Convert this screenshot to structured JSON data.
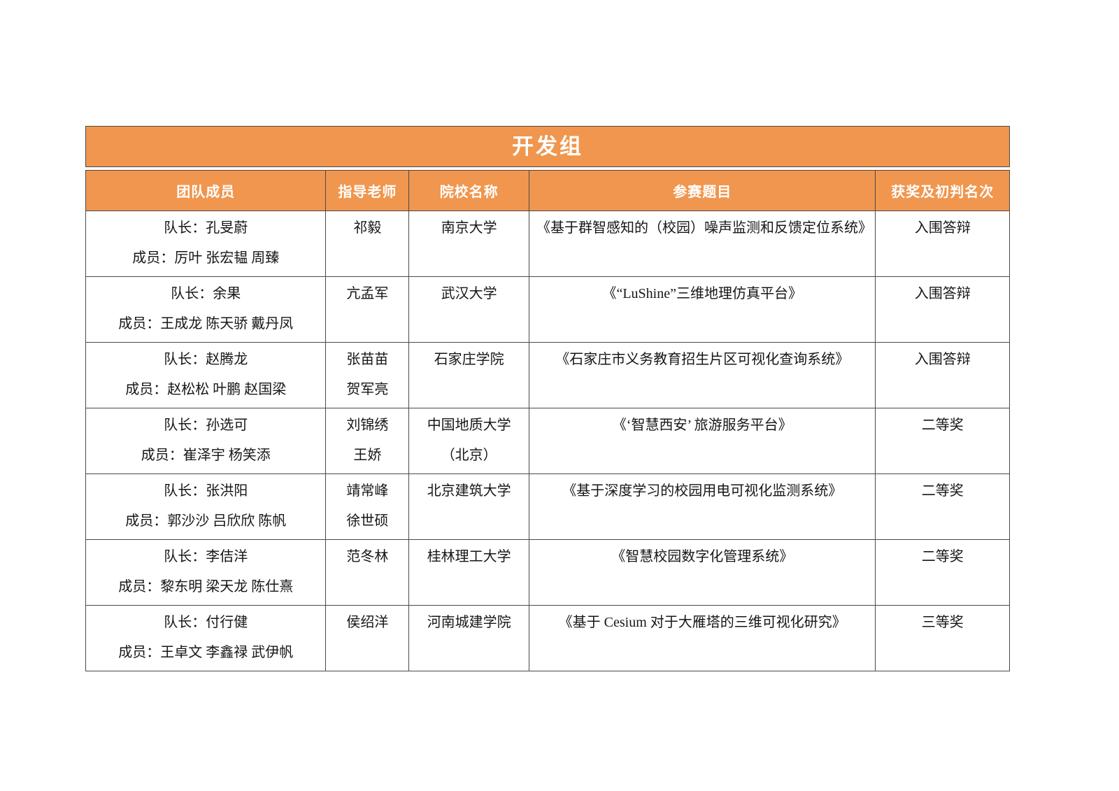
{
  "table": {
    "title": "开发组",
    "columns": [
      "团队成员",
      "指导老师",
      "院校名称",
      "参赛题目",
      "获奖及初判名次"
    ],
    "rows": [
      {
        "team": [
          "队长：孔旻蔚",
          "成员：厉叶 张宏韫 周臻"
        ],
        "teachers": [
          "祁毅"
        ],
        "school": [
          "南京大学"
        ],
        "topic": "《基于群智感知的（校园）噪声监测和反馈定位系统》",
        "award": "入围答辩"
      },
      {
        "team": [
          "队长：余果",
          "成员：王成龙 陈天骄 戴丹凤"
        ],
        "teachers": [
          "亢孟军"
        ],
        "school": [
          "武汉大学"
        ],
        "topic": "《“LuShine”三维地理仿真平台》",
        "award": "入围答辩"
      },
      {
        "team": [
          "队长：赵腾龙",
          "成员：赵松松 叶鹏 赵国梁"
        ],
        "teachers": [
          "张苗苗",
          "贺军亮"
        ],
        "school": [
          "石家庄学院"
        ],
        "topic": "《石家庄市义务教育招生片区可视化查询系统》",
        "award": "入围答辩"
      },
      {
        "team": [
          "队长：孙选可",
          "成员：崔泽宇 杨笑添"
        ],
        "teachers": [
          "刘锦绣",
          "王娇"
        ],
        "school": [
          "中国地质大学",
          "（北京）"
        ],
        "topic": "《‘智慧西安’ 旅游服务平台》",
        "award": "二等奖"
      },
      {
        "team": [
          "队长：张洪阳",
          "成员：郭沙沙 吕欣欣 陈帆"
        ],
        "teachers": [
          "靖常峰",
          "徐世硕"
        ],
        "school": [
          "北京建筑大学"
        ],
        "topic": "《基于深度学习的校园用电可视化监测系统》",
        "award": "二等奖"
      },
      {
        "team": [
          "队长：李佶洋",
          "成员：黎东明 梁天龙 陈仕熹"
        ],
        "teachers": [
          "范冬林"
        ],
        "school": [
          "桂林理工大学"
        ],
        "topic": "《智慧校园数字化管理系统》",
        "award": "二等奖"
      },
      {
        "team": [
          "队长：付行健",
          "成员：王卓文 李鑫禄 武伊帆"
        ],
        "teachers": [
          "侯绍洋"
        ],
        "school": [
          "河南城建学院"
        ],
        "topic": "《基于 Cesium 对于大雁塔的三维可视化研究》",
        "award": "三等奖"
      }
    ],
    "colors": {
      "header_bg": "#F0964E",
      "header_text": "#FFFFFF",
      "body_text": "#161616",
      "border": "#4A4A4A"
    }
  }
}
